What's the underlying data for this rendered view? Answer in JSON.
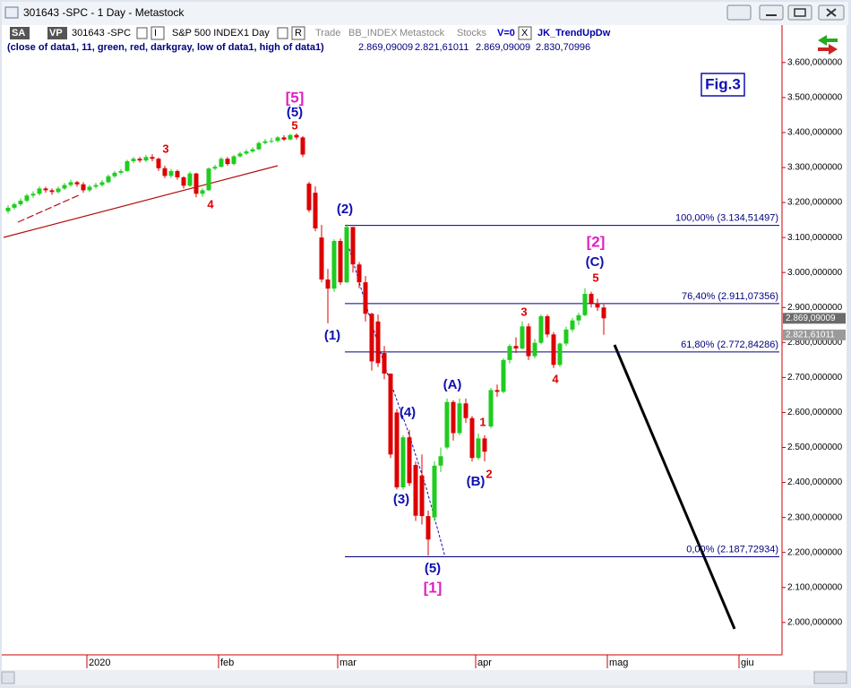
{
  "window": {
    "title": "301643 -SPC - 1 Day - Metastock"
  },
  "toolbar": {
    "items": [
      "SA",
      "VP",
      "301643 -SPC",
      "I",
      "S&P 500 INDEX",
      "1 Day",
      "R",
      "Trade",
      "BB_INDEX",
      "Metastock",
      "Stocks",
      "V=0",
      "X",
      "JK_TrendUpDw"
    ]
  },
  "indicator": {
    "label": "(close of data1,  11,  green,  red,  darkgray,  low of data1,  high of data1)",
    "values": [
      "2.869,09009",
      "2.821,61011",
      "2.869,09009",
      "2.830,70996"
    ]
  },
  "chart_data": {
    "type": "candlestick",
    "x": [
      0,
      1,
      2,
      3,
      4,
      5,
      6,
      7,
      8,
      9,
      10,
      11,
      12,
      13,
      14,
      15,
      16,
      17,
      18,
      19,
      20,
      21,
      22,
      23,
      24,
      25,
      26,
      27,
      28,
      29,
      30,
      31,
      32,
      33,
      34,
      35,
      36,
      37,
      38,
      39,
      40,
      41,
      42,
      43,
      44,
      45,
      46,
      47,
      48,
      49,
      50,
      51,
      52,
      53,
      54,
      55,
      56,
      57,
      58,
      59,
      60,
      61,
      62,
      63,
      64,
      65,
      66,
      67,
      68,
      69,
      70,
      71,
      72,
      73,
      74,
      75,
      76,
      77,
      78,
      79,
      80,
      81,
      82,
      83,
      84,
      85,
      86,
      87,
      88,
      89,
      90,
      91,
      92,
      93,
      94,
      95
    ],
    "open": [
      3175,
      3185,
      3195,
      3205,
      3220,
      3225,
      3240,
      3235,
      3230,
      3240,
      3250,
      3258,
      3252,
      3235,
      3245,
      3250,
      3258,
      3275,
      3285,
      3290,
      3318,
      3325,
      3320,
      3330,
      3325,
      3298,
      3276,
      3290,
      3272,
      3248,
      3283,
      3225,
      3235,
      3297,
      3302,
      3325,
      3310,
      3332,
      3340,
      3346,
      3352,
      3370,
      3375,
      3376,
      3386,
      3380,
      3393,
      3386,
      3254,
      3228,
      3100,
      2980,
      2954,
      3090,
      2972,
      3130,
      3023,
      2972,
      2882,
      2860,
      2770,
      2711,
      2600,
      2386,
      2529,
      2450,
      2420,
      2304,
      2300,
      2448,
      2500,
      2630,
      2541,
      2626,
      2584,
      2470,
      2526,
      2560,
      2664,
      2659,
      2750,
      2790,
      2783,
      2846,
      2761,
      2799,
      2875,
      2823,
      2736,
      2797,
      2837,
      2863,
      2878,
      2939,
      2912,
      2900
    ],
    "high": [
      3192,
      3200,
      3212,
      3225,
      3232,
      3246,
      3245,
      3240,
      3246,
      3256,
      3265,
      3262,
      3258,
      3250,
      3256,
      3264,
      3280,
      3290,
      3296,
      3322,
      3330,
      3330,
      3336,
      3338,
      3328,
      3305,
      3296,
      3294,
      3275,
      3288,
      3285,
      3240,
      3300,
      3308,
      3330,
      3330,
      3336,
      3345,
      3352,
      3358,
      3374,
      3382,
      3385,
      3390,
      3392,
      3396,
      3398,
      3390,
      3259,
      3246,
      3136,
      3010,
      3095,
      3097,
      3137,
      3130,
      3030,
      2990,
      2885,
      2880,
      2790,
      2712,
      2610,
      2535,
      2550,
      2460,
      2480,
      2320,
      2460,
      2500,
      2640,
      2635,
      2640,
      2640,
      2590,
      2540,
      2535,
      2670,
      2680,
      2755,
      2795,
      2815,
      2860,
      2855,
      2810,
      2880,
      2880,
      2830,
      2800,
      2845,
      2870,
      2885,
      2955,
      2945,
      2925,
      2909
    ],
    "low": [
      3168,
      3180,
      3190,
      3200,
      3214,
      3220,
      3228,
      3222,
      3226,
      3236,
      3245,
      3245,
      3228,
      3230,
      3240,
      3246,
      3255,
      3270,
      3280,
      3288,
      3312,
      3314,
      3316,
      3318,
      3290,
      3270,
      3270,
      3265,
      3240,
      3245,
      3215,
      3216,
      3233,
      3292,
      3300,
      3305,
      3306,
      3328,
      3336,
      3342,
      3350,
      3366,
      3370,
      3372,
      3376,
      3378,
      3380,
      3330,
      3172,
      3118,
      2972,
      2855,
      2945,
      2965,
      2970,
      3000,
      2955,
      2860,
      2720,
      2730,
      2695,
      2470,
      2380,
      2380,
      2390,
      2290,
      2280,
      2191,
      2290,
      2430,
      2495,
      2520,
      2535,
      2570,
      2460,
      2465,
      2460,
      2555,
      2645,
      2655,
      2740,
      2770,
      2780,
      2750,
      2755,
      2795,
      2815,
      2727,
      2730,
      2790,
      2830,
      2850,
      2875,
      2900,
      2890,
      2822
    ],
    "close": [
      3185,
      3195,
      3205,
      3220,
      3225,
      3240,
      3235,
      3230,
      3240,
      3250,
      3258,
      3252,
      3235,
      3245,
      3250,
      3258,
      3275,
      3285,
      3290,
      3318,
      3325,
      3320,
      3330,
      3325,
      3298,
      3276,
      3290,
      3272,
      3248,
      3283,
      3225,
      3235,
      3297,
      3302,
      3325,
      3310,
      3332,
      3340,
      3346,
      3352,
      3370,
      3375,
      3376,
      3386,
      3380,
      3393,
      3386,
      3337,
      3178,
      3126,
      2980,
      2954,
      3090,
      2972,
      3130,
      3023,
      2972,
      2882,
      2746,
      2741,
      2711,
      2480,
      2386,
      2529,
      2398,
      2305,
      2304,
      2237,
      2448,
      2475,
      2630,
      2541,
      2626,
      2584,
      2470,
      2526,
      2488,
      2664,
      2659,
      2750,
      2790,
      2783,
      2846,
      2761,
      2799,
      2875,
      2823,
      2736,
      2797,
      2837,
      2863,
      2878,
      2939,
      2912,
      2900,
      2869
    ],
    "up_color": "#1fcc1f",
    "down_color": "#dd0000",
    "xlim": [
      -1,
      123
    ],
    "xticks": [
      {
        "value": 13,
        "label": "2020"
      },
      {
        "value": 34,
        "label": "feb"
      },
      {
        "value": 53,
        "label": "mar"
      },
      {
        "value": 75,
        "label": "apr"
      },
      {
        "value": 96,
        "label": "mag"
      },
      {
        "value": 117,
        "label": "giu"
      }
    ],
    "ylim": [
      1910,
      3707
    ],
    "yticks": [
      {
        "value": 2000,
        "label": "2.000,000000"
      },
      {
        "value": 2100,
        "label": "2.100,000000"
      },
      {
        "value": 2200,
        "label": "2.200,000000"
      },
      {
        "value": 2300,
        "label": "2.300,000000"
      },
      {
        "value": 2400,
        "label": "2.400,000000"
      },
      {
        "value": 2500,
        "label": "2.500,000000"
      },
      {
        "value": 2600,
        "label": "2.600,000000"
      },
      {
        "value": 2700,
        "label": "2.700,000000"
      },
      {
        "value": 2800,
        "label": "2.800,000000"
      },
      {
        "value": 2900,
        "label": "2.900,000000"
      },
      {
        "value": 3000,
        "label": "3.000,000000"
      },
      {
        "value": 3100,
        "label": "3.100,000000"
      },
      {
        "value": 3200,
        "label": "3.200,000000"
      },
      {
        "value": 3300,
        "label": "3.300,000000"
      },
      {
        "value": 3400,
        "label": "3.400,000000"
      },
      {
        "value": 3500,
        "label": "3.500,000000"
      },
      {
        "value": 3600,
        "label": "3.600,000000"
      }
    ],
    "grid": false,
    "levels": [
      {
        "value": 3134.51497,
        "label": "100,00% (3.134,51497)"
      },
      {
        "value": 2911.07356,
        "label": "76,40% (2.911,07356)"
      },
      {
        "value": 2772.84286,
        "label": "61,80% (2.772,84286)"
      },
      {
        "value": 2187.72934,
        "label": "0,00% (2.187,72934)"
      }
    ],
    "level_color": "#000080",
    "price_markers": [
      {
        "value": 2869.09009,
        "label": "2.869,09009"
      },
      {
        "value": 2821.61011,
        "label": "2.821,61011"
      }
    ],
    "annotations": [
      {
        "text": "[5]",
        "color": "#e020c0"
      },
      {
        "text": "(5)",
        "color": "#1010b0"
      },
      {
        "text": "5",
        "color": "#dd0000"
      },
      {
        "text": "3",
        "color": "#dd0000"
      },
      {
        "text": "4",
        "color": "#dd0000"
      },
      {
        "text": "(2)",
        "color": "#1010b0"
      },
      {
        "text": "(1)",
        "color": "#1010b0"
      },
      {
        "text": "(4)",
        "color": "#1010b0"
      },
      {
        "text": "(3)",
        "color": "#1010b0"
      },
      {
        "text": "(A)",
        "color": "#1010b0"
      },
      {
        "text": "1",
        "color": "#dd0000"
      },
      {
        "text": "2",
        "color": "#dd0000"
      },
      {
        "text": "(B)",
        "color": "#1010b0"
      },
      {
        "text": "3",
        "color": "#dd0000"
      },
      {
        "text": "4",
        "color": "#dd0000"
      },
      {
        "text": "5",
        "color": "#dd0000"
      },
      {
        "text": "(C)",
        "color": "#1010b0"
      },
      {
        "text": "[2]",
        "color": "#e020c0"
      },
      {
        "text": "(5)",
        "color": "#1010b0"
      },
      {
        "text": "[1]",
        "color": "#e020c0"
      }
    ],
    "figure_label": "Fig.3"
  }
}
